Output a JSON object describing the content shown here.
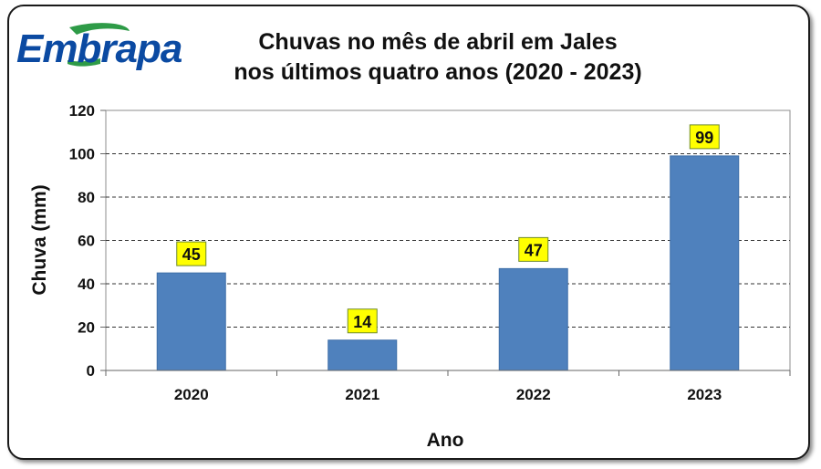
{
  "logo": {
    "text": "Embrapa",
    "color": "#0b4aa2",
    "accent": "#2e9b47"
  },
  "chart_data": {
    "type": "bar",
    "title_line1": "Chuvas no mês de abril em Jales",
    "title_line2": "nos últimos quatro anos (2020 - 2023)",
    "xlabel": "Ano",
    "ylabel": "Chuva (mm)",
    "categories": [
      "2020",
      "2021",
      "2022",
      "2023"
    ],
    "values": [
      45,
      14,
      47,
      99
    ],
    "ylim": [
      0,
      120
    ],
    "yticks": [
      0,
      20,
      40,
      60,
      80,
      100,
      120
    ],
    "grid": true,
    "bar_color": "#4f81bd",
    "label_bg": "#ffff00"
  }
}
